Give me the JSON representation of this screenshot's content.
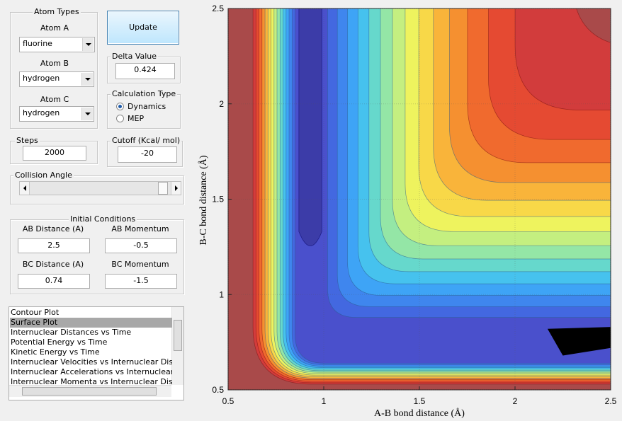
{
  "atom_types": {
    "title": "Atom Types",
    "atoms": [
      {
        "label": "Atom A",
        "value": "fluorine"
      },
      {
        "label": "Atom B",
        "value": "hydrogen"
      },
      {
        "label": "Atom C",
        "value": "hydrogen"
      }
    ]
  },
  "update_button": "Update",
  "delta_value": {
    "label": "Delta Value",
    "value": "0.424"
  },
  "calculation_type": {
    "title": "Calculation Type",
    "options": [
      "Dynamics",
      "MEP"
    ],
    "selected_index": 0
  },
  "steps": {
    "label": "Steps",
    "value": "2000"
  },
  "cutoff": {
    "label": "Cutoff (Kcal/ mol)",
    "value": "-20"
  },
  "collision_angle": {
    "label": "Collision Angle"
  },
  "initial_conditions": {
    "title": "Initial Conditions",
    "fields": [
      {
        "label": "AB Distance (A)",
        "value": "2.5"
      },
      {
        "label": "AB Momentum",
        "value": "-0.5"
      },
      {
        "label": "BC Distance (A)",
        "value": "0.74"
      },
      {
        "label": "BC Momentum",
        "value": "-1.5"
      }
    ]
  },
  "plot_list": {
    "items": [
      "Contour Plot",
      "Surface Plot",
      "Internuclear Distances vs Time",
      "Potential Energy vs Time",
      "Kinetic Energy vs Time",
      "Internuclear Velocities vs Internuclear Distances",
      "Internuclear Accelerations vs Internuclear Distances",
      "Internuclear Momenta vs Internuclear Distances"
    ],
    "selected_index": 1
  },
  "chart_data": {
    "type": "contour",
    "xlabel": "A-B bond distance (Å)",
    "ylabel": "B-C bond distance (Å)",
    "xlim": [
      0.5,
      2.5
    ],
    "ylim": [
      0.5,
      2.5
    ],
    "xticks": [
      0.5,
      1,
      1.5,
      2,
      2.5
    ],
    "yticks": [
      0.5,
      1,
      1.5,
      2,
      2.5
    ],
    "grid": true
  }
}
